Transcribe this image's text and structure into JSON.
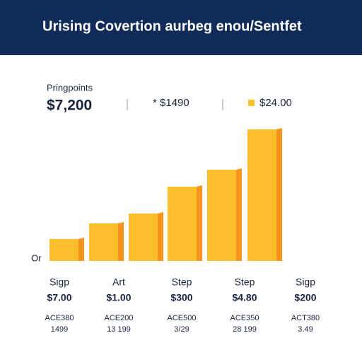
{
  "header": {
    "title": "Urising Covertion aurbeg enou/Sentfet"
  },
  "summary": {
    "label": "Pringpoints",
    "value": "$7,200",
    "items": [
      "* $1490",
      "$24.00"
    ]
  },
  "chart_data": {
    "type": "bar",
    "axis_label": "Or",
    "values": [
      31,
      53,
      67,
      105,
      129,
      186
    ],
    "color": "#fbbf2b",
    "side_color": "#f7941d",
    "ylim": [
      0,
      186
    ]
  },
  "columns": [
    {
      "name": "Sigp",
      "price": "$7.00",
      "code": "ACE380",
      "note": "1499"
    },
    {
      "name": "Art",
      "price": "$1.00",
      "code": "ACE200",
      "note": "13 199"
    },
    {
      "name": "Step",
      "price": "$300",
      "code": "ACE500",
      "note": "3/29"
    },
    {
      "name": "Step",
      "price": "$4.80",
      "code": "ACE350",
      "note": "28 199"
    },
    {
      "name": "Sigp",
      "price": "$200",
      "code": "ACT380",
      "note": "3.49"
    }
  ]
}
